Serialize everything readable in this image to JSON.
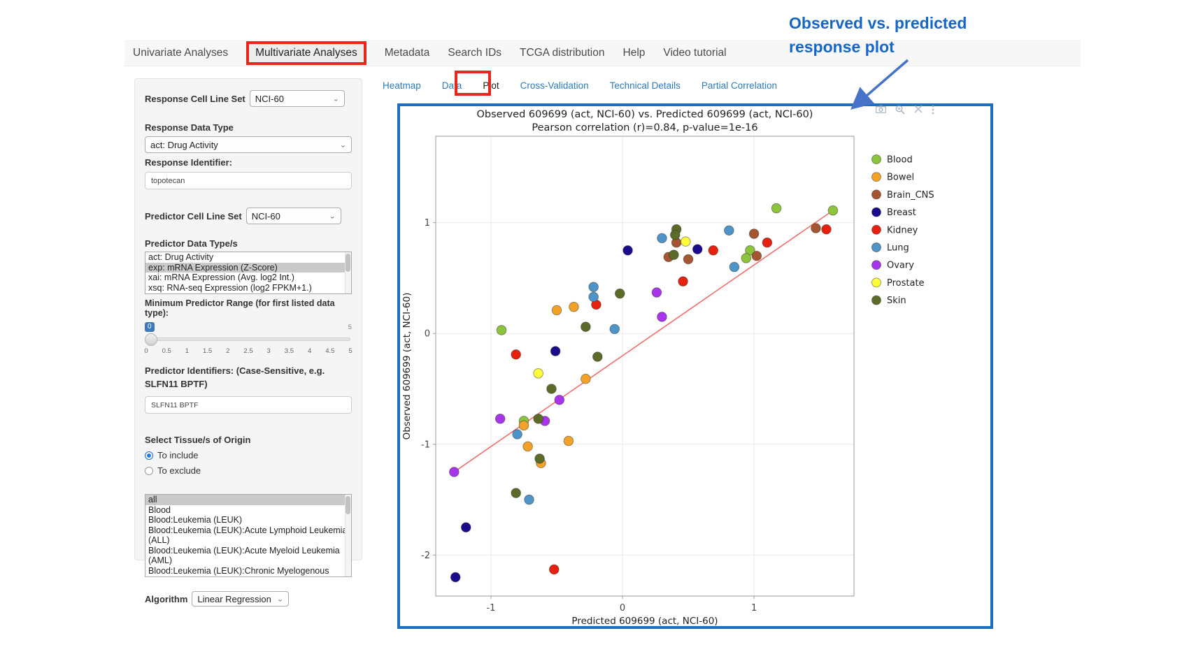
{
  "annotation": {
    "line1": "Observed  vs. predicted",
    "line2": "response plot"
  },
  "nav": {
    "items": [
      {
        "label": "Univariate Analyses",
        "active": false
      },
      {
        "label": "Multivariate Analyses",
        "active": true
      },
      {
        "label": "Metadata",
        "active": false
      },
      {
        "label": "Search IDs",
        "active": false
      },
      {
        "label": "TCGA distribution",
        "active": false
      },
      {
        "label": "Help",
        "active": false
      },
      {
        "label": "Video tutorial",
        "active": false
      }
    ]
  },
  "tabs": [
    {
      "label": "Heatmap",
      "active": false
    },
    {
      "label": "Data",
      "active": false
    },
    {
      "label": "Plot",
      "active": true
    },
    {
      "label": "Cross-Validation",
      "active": false
    },
    {
      "label": "Technical Details",
      "active": false
    },
    {
      "label": "Partial Correlation",
      "active": false
    }
  ],
  "sidebar": {
    "response_cell_line_set_label": "Response Cell Line Set",
    "response_cell_line_set_value": "NCI-60",
    "response_data_type_label": "Response Data Type",
    "response_data_type_value": "act: Drug Activity",
    "response_identifier_label": "Response Identifier:",
    "response_identifier_value": "topotecan",
    "predictor_cell_line_set_label": "Predictor Cell Line Set",
    "predictor_cell_line_set_value": "NCI-60",
    "predictor_data_types_label": "Predictor Data Type/s",
    "predictor_data_types": [
      {
        "label": "act: Drug Activity",
        "selected": false
      },
      {
        "label": "exp: mRNA Expression (Z-Score)",
        "selected": true
      },
      {
        "label": "xai: mRNA Expression (Avg. log2 Int.)",
        "selected": false
      },
      {
        "label": "xsq: RNA-seq Expression (log2 FPKM+1.)",
        "selected": false
      }
    ],
    "min_range_label": "Minimum Predictor Range (for first listed data type):",
    "slider": {
      "value": "0",
      "max_label": "5",
      "ticks": [
        "0",
        "0.5",
        "1",
        "1.5",
        "2",
        "2.5",
        "3",
        "3.5",
        "4",
        "4.5",
        "5"
      ]
    },
    "predictor_identifiers_label": "Predictor Identifiers: (Case-Sensitive, e.g. SLFN11 BPTF)",
    "predictor_identifiers_value": "SLFN11 BPTF",
    "tissue_label": "Select Tissue/s of Origin",
    "tissue_radios": [
      {
        "label": "To include",
        "selected": true
      },
      {
        "label": "To exclude",
        "selected": false
      }
    ],
    "tissue_options": [
      {
        "label": "all",
        "selected": true
      },
      {
        "label": "Blood",
        "selected": false
      },
      {
        "label": "Blood:Leukemia (LEUK)",
        "selected": false
      },
      {
        "label": "Blood:Leukemia (LEUK):Acute Lymphoid Leukemia (ALL)",
        "selected": false
      },
      {
        "label": "Blood:Leukemia (LEUK):Acute Myeloid Leukemia (AML)",
        "selected": false
      },
      {
        "label": "Blood:Leukemia (LEUK):Chronic Myelogenous Leukemia (CML)",
        "selected": false
      }
    ],
    "algorithm_label": "Algorithm",
    "algorithm_value": "Linear Regression"
  },
  "modebar": {
    "icons": [
      "camera-icon",
      "zoom-icon",
      "close-icon",
      "more-icon"
    ]
  },
  "colors": {
    "accent_blue": "#1b6fbe",
    "red_box": "#e8261c",
    "tab_link": "#2e7bb8",
    "annotation_blue": "#1666c8",
    "trend_line": "#f46d6d"
  },
  "chart_data": {
    "type": "scatter",
    "title": "Observed 609699 (act, NCI-60) vs. Predicted 609699 (act, NCI-60)",
    "subtitle": "Pearson correlation (r)=0.84, p-value=1e-16",
    "xlabel": "Predicted 609699 (act, NCI-60)",
    "ylabel": "Observed 609699 (act, NCI-60)",
    "xlim": [
      -1.42,
      1.76
    ],
    "ylim": [
      -2.37,
      1.78
    ],
    "xticks": [
      -1,
      0,
      1
    ],
    "yticks": [
      -2,
      -1,
      0,
      1
    ],
    "grid": true,
    "legend_position": "right",
    "trend_line": {
      "x1": -1.28,
      "y1": -1.25,
      "x2": 1.6,
      "y2": 1.11
    },
    "series": [
      {
        "name": "Blood",
        "color": "#8cc43c",
        "points": [
          [
            -0.92,
            0.03
          ],
          [
            -0.75,
            -0.79
          ],
          [
            1.17,
            1.13
          ],
          [
            0.97,
            0.75
          ],
          [
            0.94,
            0.68
          ],
          [
            1.6,
            1.11
          ]
        ]
      },
      {
        "name": "Bowel",
        "color": "#f2a227",
        "points": [
          [
            -0.5,
            0.21
          ],
          [
            -0.37,
            0.24
          ],
          [
            -0.28,
            -0.41
          ],
          [
            -0.75,
            -0.83
          ],
          [
            -0.41,
            -0.97
          ],
          [
            -0.72,
            -1.02
          ],
          [
            -0.62,
            -1.17
          ]
        ]
      },
      {
        "name": "Brain_CNS",
        "color": "#a5552f",
        "points": [
          [
            0.41,
            0.82
          ],
          [
            0.35,
            0.69
          ],
          [
            0.5,
            0.67
          ],
          [
            1.0,
            0.9
          ],
          [
            1.02,
            0.7
          ],
          [
            1.47,
            0.95
          ]
        ]
      },
      {
        "name": "Breast",
        "color": "#1a0a8c",
        "points": [
          [
            0.04,
            0.75
          ],
          [
            0.57,
            0.76
          ],
          [
            -0.51,
            -0.16
          ],
          [
            -1.19,
            -1.75
          ],
          [
            -1.27,
            -2.2
          ]
        ]
      },
      {
        "name": "Kidney",
        "color": "#e8200e",
        "points": [
          [
            -0.81,
            -0.19
          ],
          [
            -0.2,
            0.26
          ],
          [
            0.46,
            0.47
          ],
          [
            0.69,
            0.75
          ],
          [
            1.1,
            0.82
          ],
          [
            1.55,
            0.94
          ],
          [
            -0.52,
            -2.13
          ]
        ]
      },
      {
        "name": "Lung",
        "color": "#4e94c8",
        "points": [
          [
            -0.22,
            0.42
          ],
          [
            -0.22,
            0.33
          ],
          [
            0.3,
            0.86
          ],
          [
            0.81,
            0.93
          ],
          [
            0.85,
            0.6
          ],
          [
            -0.06,
            0.04
          ],
          [
            -0.8,
            -0.91
          ],
          [
            -0.71,
            -1.5
          ]
        ]
      },
      {
        "name": "Ovary",
        "color": "#a935eb",
        "points": [
          [
            0.26,
            0.37
          ],
          [
            0.3,
            0.15
          ],
          [
            -0.48,
            -0.6
          ],
          [
            -0.93,
            -0.77
          ],
          [
            -0.59,
            -0.79
          ],
          [
            -1.28,
            -1.25
          ]
        ]
      },
      {
        "name": "Prostate",
        "color": "#fcfc3b",
        "points": [
          [
            0.48,
            0.83
          ],
          [
            -0.64,
            -0.36
          ]
        ]
      },
      {
        "name": "Skin",
        "color": "#5c6b28",
        "points": [
          [
            0.41,
            0.94
          ],
          [
            0.4,
            0.89
          ],
          [
            0.39,
            0.71
          ],
          [
            -0.02,
            0.36
          ],
          [
            -0.28,
            0.06
          ],
          [
            -0.19,
            -0.21
          ],
          [
            -0.54,
            -0.5
          ],
          [
            -0.64,
            -0.77
          ],
          [
            -0.63,
            -1.13
          ],
          [
            -0.81,
            -1.44
          ]
        ]
      }
    ]
  }
}
